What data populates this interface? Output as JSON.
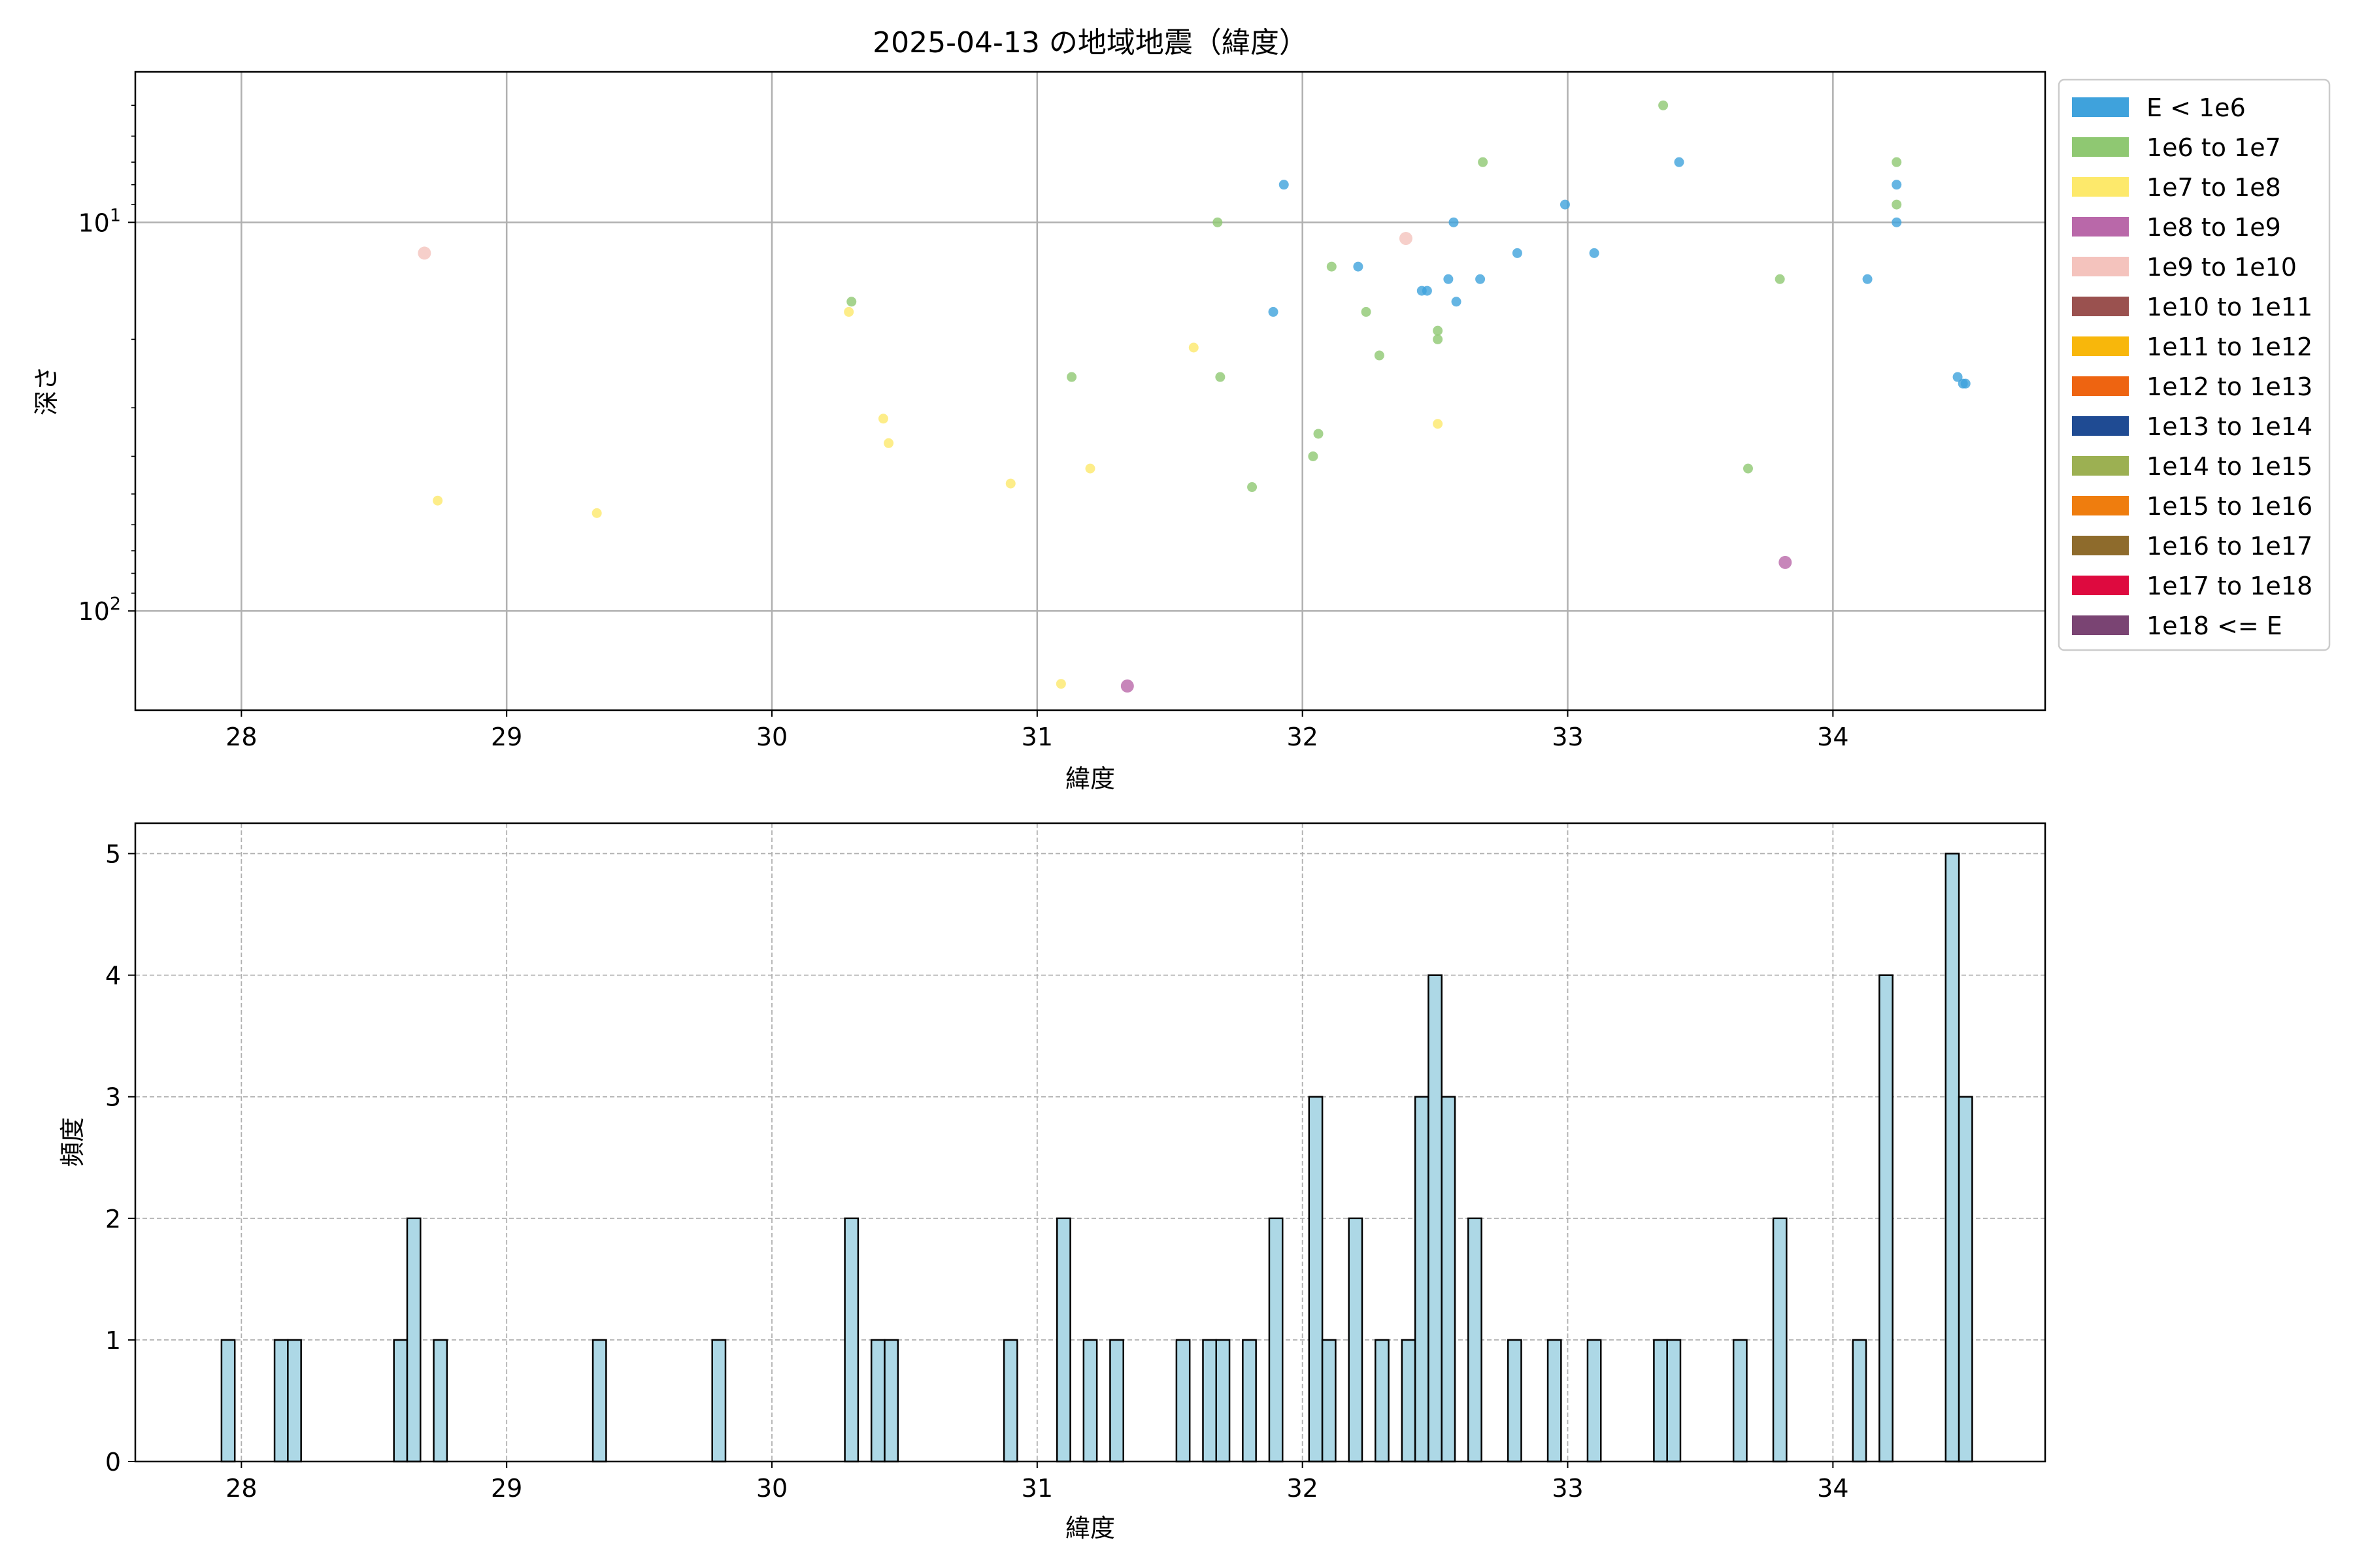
{
  "chart_data": [
    {
      "type": "scatter",
      "title": "2025-04-13 の地域地震（緯度）",
      "xlabel": "緯度",
      "ylabel": "深さ",
      "xlim": [
        27.6,
        34.8
      ],
      "ylim": [
        180,
        4.1
      ],
      "yscale": "log",
      "y_inverted": true,
      "grid": true,
      "legend_position": "outside-right",
      "x_ticks": [
        28,
        29,
        30,
        31,
        32,
        33,
        34
      ],
      "x_tick_labels": [
        "28",
        "29",
        "30",
        "31",
        "32",
        "33",
        "34"
      ],
      "y_ticks": [
        10,
        100
      ],
      "y_tick_labels": [
        {
          "base": "10",
          "exp": "1"
        },
        {
          "base": "10",
          "exp": "2"
        }
      ],
      "legend": [
        {
          "label": "E < 1e6",
          "color": "#3fa2dc"
        },
        {
          "label": "1e6 to 1e7",
          "color": "#8fc872"
        },
        {
          "label": "1e7 to 1e8",
          "color": "#fde96b"
        },
        {
          "label": "1e8 to 1e9",
          "color": "#b968a9"
        },
        {
          "label": "1e9 to 1e10",
          "color": "#f4c3bd"
        },
        {
          "label": "1e10 to 1e11",
          "color": "#9a514f"
        },
        {
          "label": "1e11 to 1e12",
          "color": "#f8b70b"
        },
        {
          "label": "1e12 to 1e13",
          "color": "#ee6411"
        },
        {
          "label": "1e13 to 1e14",
          "color": "#1f4b93"
        },
        {
          "label": "1e14 to 1e15",
          "color": "#9cb052"
        },
        {
          "label": "1e15 to 1e16",
          "color": "#ef7d0e"
        },
        {
          "label": "1e16 to 1e17",
          "color": "#8e6b2c"
        },
        {
          "label": "1e17 to 1e18",
          "color": "#de0a3f"
        },
        {
          "label": "1e18 <= E",
          "color": "#7a4473"
        }
      ],
      "series": [
        {
          "name": "E < 1e6",
          "points": [
            [
              31.93,
              8
            ],
            [
              32.21,
              13
            ],
            [
              32.45,
              15
            ],
            [
              32.47,
              15
            ],
            [
              32.55,
              14
            ],
            [
              32.57,
              10
            ],
            [
              32.58,
              16
            ],
            [
              32.67,
              14
            ],
            [
              32.81,
              12
            ],
            [
              32.99,
              9
            ],
            [
              33.1,
              12
            ],
            [
              33.42,
              7
            ],
            [
              31.89,
              17
            ],
            [
              34.13,
              14
            ],
            [
              34.24,
              8
            ],
            [
              34.24,
              10
            ],
            [
              34.47,
              25
            ],
            [
              34.49,
              26
            ],
            [
              34.5,
              26
            ]
          ]
        },
        {
          "name": "1e6 to 1e7",
          "points": [
            [
              30.3,
              16
            ],
            [
              31.13,
              25
            ],
            [
              31.68,
              10
            ],
            [
              31.69,
              25
            ],
            [
              31.81,
              48
            ],
            [
              32.04,
              40
            ],
            [
              32.06,
              35
            ],
            [
              32.11,
              13
            ],
            [
              32.24,
              17
            ],
            [
              32.29,
              22
            ],
            [
              32.51,
              20
            ],
            [
              32.51,
              19
            ],
            [
              32.68,
              7
            ],
            [
              33.36,
              5
            ],
            [
              33.68,
              43
            ],
            [
              33.8,
              14
            ],
            [
              34.24,
              7
            ],
            [
              34.24,
              9
            ]
          ]
        },
        {
          "name": "1e7 to 1e8",
          "points": [
            [
              28.74,
              52
            ],
            [
              29.34,
              56
            ],
            [
              30.29,
              17
            ],
            [
              30.42,
              32
            ],
            [
              30.44,
              37
            ],
            [
              30.9,
              47
            ],
            [
              31.09,
              154
            ],
            [
              31.2,
              43
            ],
            [
              31.59,
              21
            ],
            [
              32.51,
              33
            ]
          ]
        },
        {
          "name": "1e8 to 1e9",
          "points": [
            [
              31.34,
              156
            ],
            [
              33.82,
              75
            ]
          ]
        },
        {
          "name": "1e9 to 1e10",
          "points": [
            [
              28.69,
              12
            ],
            [
              32.39,
              11
            ]
          ]
        }
      ]
    },
    {
      "type": "bar",
      "xlabel": "緯度",
      "ylabel": "頻度",
      "xlim": [
        27.6,
        34.8
      ],
      "ylim": [
        0,
        5.25
      ],
      "grid": true,
      "bin_width": 0.05,
      "x_ticks": [
        28,
        29,
        30,
        31,
        32,
        33,
        34
      ],
      "x_tick_labels": [
        "28",
        "29",
        "30",
        "31",
        "32",
        "33",
        "34"
      ],
      "y_ticks": [
        0,
        1,
        2,
        3,
        4,
        5
      ],
      "y_tick_labels": [
        "0",
        "1",
        "2",
        "3",
        "4",
        "5"
      ],
      "bars": [
        [
          27.95,
          1
        ],
        [
          28.15,
          1
        ],
        [
          28.2,
          1
        ],
        [
          28.6,
          1
        ],
        [
          28.65,
          2
        ],
        [
          28.75,
          1
        ],
        [
          29.35,
          1
        ],
        [
          29.8,
          1
        ],
        [
          30.3,
          2
        ],
        [
          30.4,
          1
        ],
        [
          30.45,
          1
        ],
        [
          30.9,
          1
        ],
        [
          31.1,
          2
        ],
        [
          31.2,
          1
        ],
        [
          31.3,
          1
        ],
        [
          31.55,
          1
        ],
        [
          31.65,
          1
        ],
        [
          31.7,
          1
        ],
        [
          31.8,
          1
        ],
        [
          31.9,
          2
        ],
        [
          32.05,
          3
        ],
        [
          32.1,
          1
        ],
        [
          32.2,
          2
        ],
        [
          32.3,
          1
        ],
        [
          32.4,
          1
        ],
        [
          32.45,
          3
        ],
        [
          32.5,
          4
        ],
        [
          32.55,
          3
        ],
        [
          32.65,
          2
        ],
        [
          32.8,
          1
        ],
        [
          32.95,
          1
        ],
        [
          33.1,
          1
        ],
        [
          33.35,
          1
        ],
        [
          33.4,
          1
        ],
        [
          33.65,
          1
        ],
        [
          33.8,
          2
        ],
        [
          34.1,
          1
        ],
        [
          34.2,
          4
        ],
        [
          34.45,
          5
        ],
        [
          34.5,
          3
        ]
      ]
    }
  ]
}
